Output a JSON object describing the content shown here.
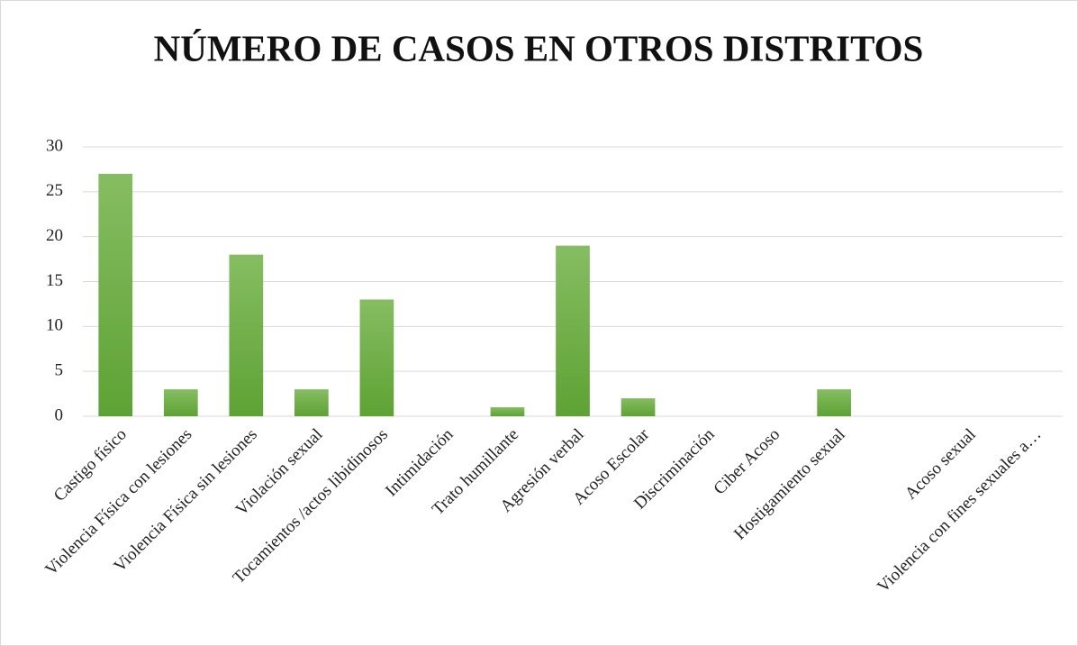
{
  "chart_data": {
    "type": "bar",
    "title": "NÚMERO DE CASOS EN OTROS DISTRITOS",
    "categories": [
      "Castigo físico",
      "Violencia Física con lesiones",
      "Violencia Física sin lesiones",
      "Violación sexual",
      "Tocamientos /actos libidinosos",
      "Intimidación",
      "Trato humillante",
      "Agresión verbal",
      "Acoso Escolar",
      "Discriminación",
      "Ciber Acoso",
      "Hostigamiento sexual",
      null,
      "Acoso sexual",
      "Violencia con fines sexuales a…"
    ],
    "values": [
      27,
      3,
      18,
      3,
      13,
      0,
      1,
      19,
      2,
      0,
      0,
      3,
      0,
      0,
      0
    ],
    "color": "#70ad47",
    "ylim": [
      0,
      30
    ],
    "yticks": [
      0,
      5,
      10,
      15,
      20,
      25,
      30
    ],
    "grid": true
  }
}
